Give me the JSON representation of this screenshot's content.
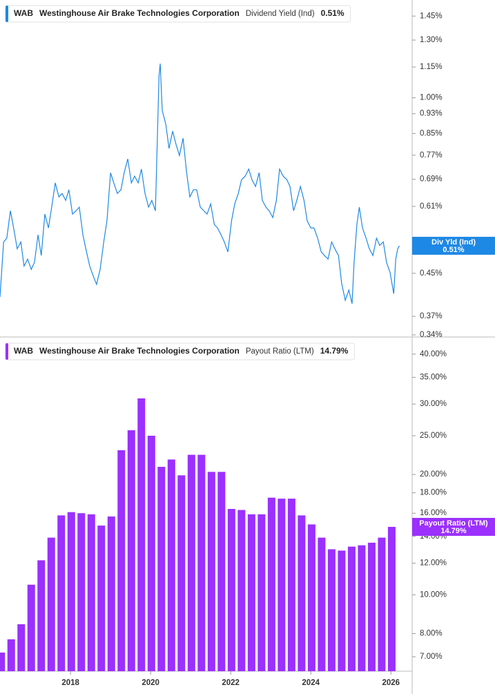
{
  "chart_data": [
    {
      "type": "line",
      "ticker": "WAB",
      "company": "Westinghouse Air Brake Technologies Corporation",
      "metric": "Dividend Yield (Ind)",
      "last_value_label": "0.51%",
      "badge_label": "Div Yld (Ind)",
      "color": "#1e88e5",
      "log_y": true,
      "xlim": [
        2016.24,
        2026.53
      ],
      "ylim": [
        0.34,
        1.56
      ],
      "yticks": [
        {
          "value": 1.45,
          "label": "1.45%"
        },
        {
          "value": 1.3,
          "label": "1.30%"
        },
        {
          "value": 1.15,
          "label": "1.15%"
        },
        {
          "value": 1.0,
          "label": "1.00%"
        },
        {
          "value": 0.93,
          "label": "0.93%"
        },
        {
          "value": 0.85,
          "label": "0.85%"
        },
        {
          "value": 0.77,
          "label": "0.77%"
        },
        {
          "value": 0.69,
          "label": "0.69%"
        },
        {
          "value": 0.61,
          "label": "0.61%"
        },
        {
          "value": 0.45,
          "label": "0.45%"
        },
        {
          "value": 0.37,
          "label": "0.37%"
        },
        {
          "value": 0.34,
          "label": "0.34%"
        }
      ],
      "x": [
        2016.24,
        2016.33,
        2016.41,
        2016.5,
        2016.58,
        2016.67,
        2016.76,
        2016.84,
        2016.93,
        2017.02,
        2017.1,
        2017.19,
        2017.27,
        2017.36,
        2017.45,
        2017.53,
        2017.62,
        2017.71,
        2017.79,
        2017.88,
        2017.96,
        2018.05,
        2018.14,
        2018.22,
        2018.31,
        2018.4,
        2018.48,
        2018.57,
        2018.65,
        2018.74,
        2018.83,
        2018.91,
        2019.0,
        2019.08,
        2019.17,
        2019.26,
        2019.34,
        2019.43,
        2019.52,
        2019.6,
        2019.69,
        2019.77,
        2019.86,
        2019.95,
        2020.03,
        2020.12,
        2020.21,
        2020.24,
        2020.29,
        2020.38,
        2020.46,
        2020.55,
        2020.64,
        2020.72,
        2020.81,
        2020.9,
        2020.98,
        2021.07,
        2021.15,
        2021.24,
        2021.33,
        2021.41,
        2021.5,
        2021.59,
        2021.67,
        2021.76,
        2021.84,
        2021.93,
        2022.02,
        2022.1,
        2022.19,
        2022.27,
        2022.36,
        2022.45,
        2022.53,
        2022.62,
        2022.71,
        2022.79,
        2022.88,
        2022.96,
        2023.05,
        2023.14,
        2023.22,
        2023.31,
        2023.4,
        2023.48,
        2023.57,
        2023.65,
        2023.74,
        2023.83,
        2023.91,
        2024.0,
        2024.08,
        2024.17,
        2024.26,
        2024.34,
        2024.43,
        2024.52,
        2024.6,
        2024.69,
        2024.77,
        2024.86,
        2024.95,
        2025.03,
        2025.08,
        2025.15,
        2025.21,
        2025.29,
        2025.38,
        2025.46,
        2025.55,
        2025.64,
        2025.72,
        2025.81,
        2025.89,
        2025.98,
        2026.07,
        2026.12,
        2026.17,
        2026.21
      ],
      "values": [
        0.404,
        0.519,
        0.528,
        0.598,
        0.553,
        0.503,
        0.519,
        0.465,
        0.48,
        0.458,
        0.473,
        0.536,
        0.488,
        0.589,
        0.553,
        0.608,
        0.679,
        0.637,
        0.647,
        0.627,
        0.658,
        0.589,
        0.598,
        0.608,
        0.536,
        0.496,
        0.465,
        0.444,
        0.428,
        0.458,
        0.519,
        0.571,
        0.711,
        0.679,
        0.647,
        0.658,
        0.711,
        0.757,
        0.679,
        0.7,
        0.679,
        0.723,
        0.647,
        0.608,
        0.627,
        0.598,
        1.104,
        1.168,
        0.944,
        0.886,
        0.794,
        0.859,
        0.806,
        0.769,
        0.832,
        0.711,
        0.637,
        0.658,
        0.658,
        0.608,
        0.598,
        0.589,
        0.617,
        0.562,
        0.553,
        0.536,
        0.519,
        0.496,
        0.571,
        0.617,
        0.647,
        0.689,
        0.7,
        0.723,
        0.689,
        0.668,
        0.711,
        0.627,
        0.608,
        0.598,
        0.58,
        0.627,
        0.723,
        0.7,
        0.689,
        0.668,
        0.598,
        0.627,
        0.668,
        0.627,
        0.571,
        0.553,
        0.553,
        0.528,
        0.496,
        0.488,
        0.48,
        0.519,
        0.503,
        0.488,
        0.43,
        0.398,
        0.417,
        0.392,
        0.473,
        0.562,
        0.608,
        0.553,
        0.528,
        0.503,
        0.488,
        0.528,
        0.511,
        0.519,
        0.473,
        0.451,
        0.41,
        0.48,
        0.503,
        0.51
      ]
    },
    {
      "type": "bar",
      "ticker": "WAB",
      "company": "Westinghouse Air Brake Technologies Corporation",
      "metric": "Payout Ratio (LTM)",
      "last_value_label": "14.79%",
      "badge_label": "Payout Ratio (LTM)",
      "color": "#9b30ff",
      "log_y": true,
      "xlim": [
        2016.24,
        2026.53
      ],
      "ylim": [
        6.44,
        42.6
      ],
      "xticks": [
        2018,
        2020,
        2022,
        2024,
        2026
      ],
      "yticks": [
        {
          "value": 40,
          "label": "40.00%"
        },
        {
          "value": 35,
          "label": "35.00%"
        },
        {
          "value": 30,
          "label": "30.00%"
        },
        {
          "value": 25,
          "label": "25.00%"
        },
        {
          "value": 20,
          "label": "20.00%"
        },
        {
          "value": 18,
          "label": "18.00%"
        },
        {
          "value": 16,
          "label": "16.00%"
        },
        {
          "value": 14,
          "label": "14.00%"
        },
        {
          "value": 12,
          "label": "12.00%"
        },
        {
          "value": 10,
          "label": "10.00%"
        },
        {
          "value": 8,
          "label": "8.00%"
        },
        {
          "value": 7,
          "label": "7.00%"
        }
      ],
      "x": [
        2016.27,
        2016.52,
        2016.77,
        2017.02,
        2017.27,
        2017.52,
        2017.77,
        2018.02,
        2018.27,
        2018.52,
        2018.77,
        2019.02,
        2019.27,
        2019.52,
        2019.77,
        2020.02,
        2020.27,
        2020.52,
        2020.77,
        2021.02,
        2021.27,
        2021.52,
        2021.77,
        2022.02,
        2022.27,
        2022.52,
        2022.77,
        2023.02,
        2023.27,
        2023.52,
        2023.77,
        2024.02,
        2024.27,
        2024.52,
        2024.77,
        2025.02,
        2025.27,
        2025.52,
        2025.77,
        2026.02
      ],
      "values": [
        7.17,
        7.74,
        8.44,
        10.6,
        12.2,
        13.9,
        15.8,
        16.1,
        16.0,
        15.9,
        14.9,
        15.7,
        23.0,
        25.8,
        31.0,
        25.0,
        20.9,
        21.8,
        19.9,
        22.4,
        22.4,
        20.3,
        20.3,
        16.4,
        16.3,
        15.9,
        15.9,
        17.5,
        17.4,
        17.4,
        15.8,
        15.0,
        13.9,
        13.0,
        12.9,
        13.2,
        13.3,
        13.5,
        13.9,
        14.79
      ]
    }
  ]
}
